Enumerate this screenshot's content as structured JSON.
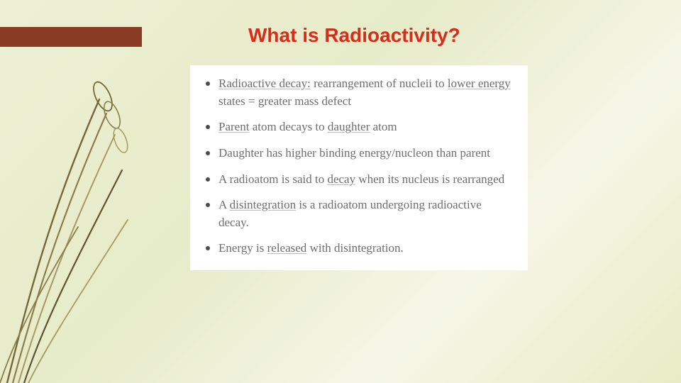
{
  "slide": {
    "title": "What is Radioactivity?",
    "title_color": "#d72c1a",
    "title_fontsize": 28,
    "accent_bar_color": "#8a3b24",
    "background_gradient": [
      "#eef0d4",
      "#e6ebc8",
      "#f5f6e6",
      "#e8ecc5"
    ],
    "content_background": "#ffffff",
    "content_text_color": "#6e6e6e",
    "content_fontsize": 17,
    "content_font": "serif",
    "bullets": [
      {
        "segments": [
          {
            "text": "Radioactive decay:",
            "underline": true
          },
          {
            "text": " rearrangement of nucleii to "
          },
          {
            "text": "lower energy",
            "underline": true
          },
          {
            "text": " states = greater mass defect"
          }
        ]
      },
      {
        "segments": [
          {
            "text": "Parent",
            "underline": true
          },
          {
            "text": " atom decays to "
          },
          {
            "text": "daughter",
            "underline": true
          },
          {
            "text": " atom"
          }
        ]
      },
      {
        "segments": [
          {
            "text": "Daughter has higher binding energy/nucleon than parent"
          }
        ]
      },
      {
        "segments": [
          {
            "text": "A radioatom is said to "
          },
          {
            "text": "decay",
            "underline": true
          },
          {
            "text": " when its nucleus is rearranged"
          }
        ]
      },
      {
        "segments": [
          {
            "text": "A "
          },
          {
            "text": "disintegration",
            "underline": true
          },
          {
            "text": " is a radioatom undergoing radioactive decay."
          }
        ]
      },
      {
        "segments": [
          {
            "text": "Energy is "
          },
          {
            "text": "released",
            "underline": true
          },
          {
            "text": " with disintegration."
          }
        ]
      }
    ],
    "decoration": {
      "type": "plant-strokes",
      "stroke_colors": [
        "#73683a",
        "#8a7f4a",
        "#a59a62",
        "#5e5530"
      ],
      "stroke_width": 2.2
    }
  }
}
